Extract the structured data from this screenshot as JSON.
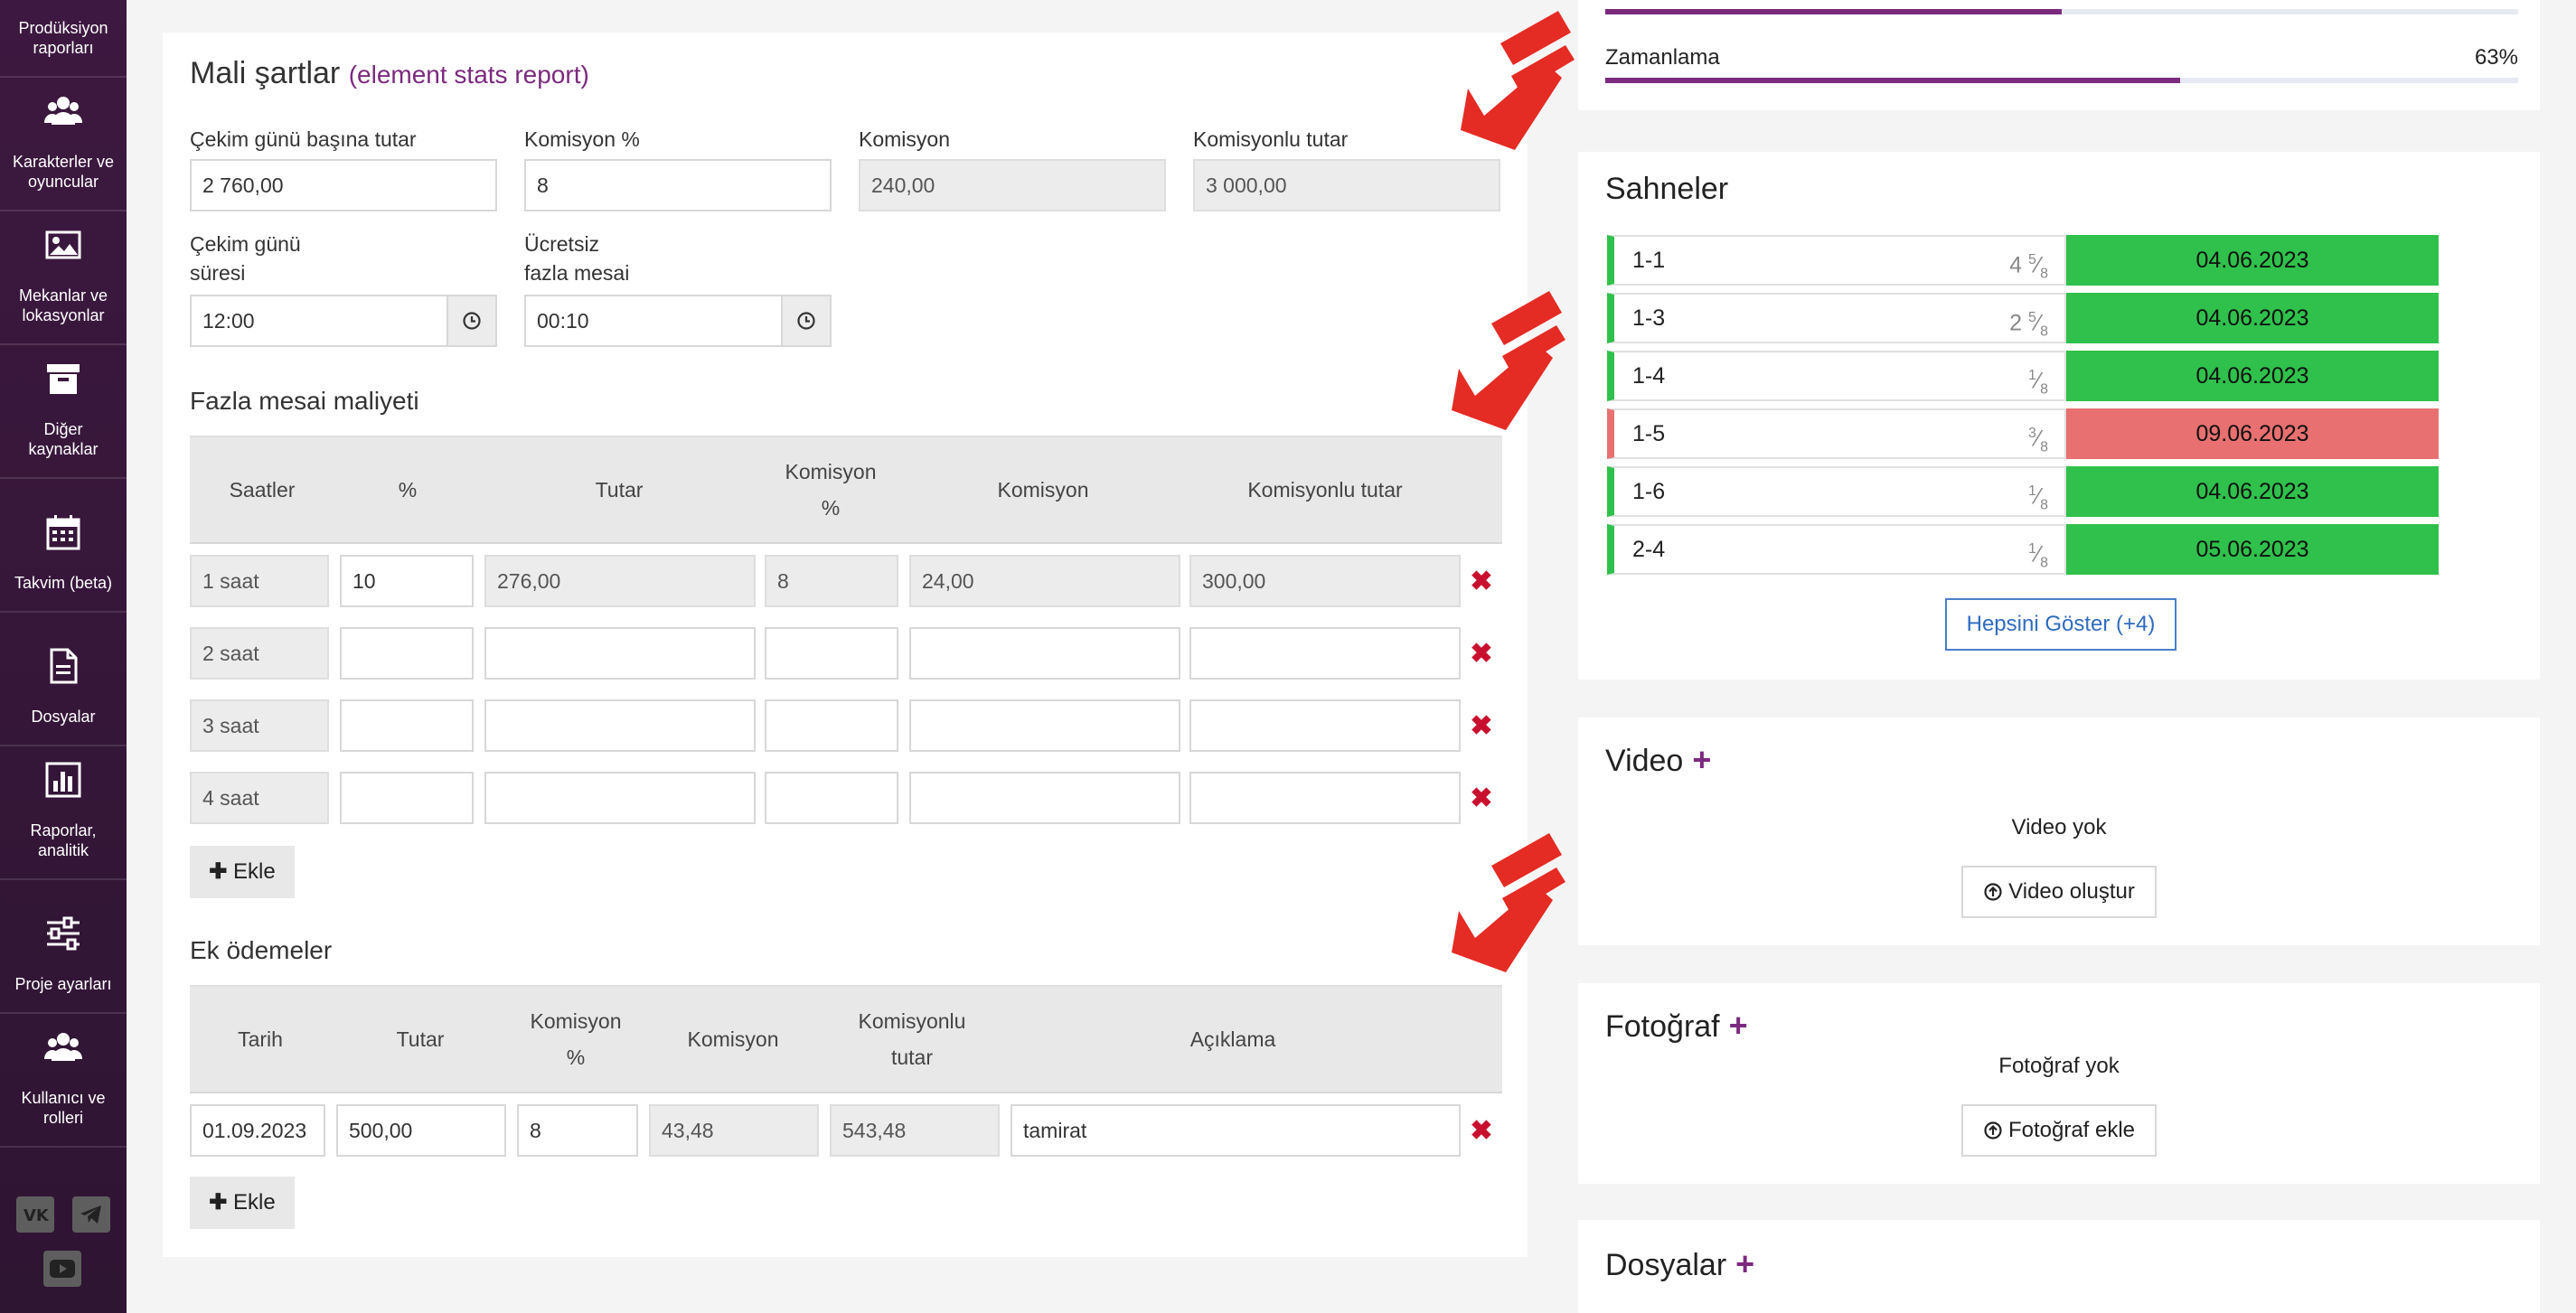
{
  "sidebar": {
    "items": [
      {
        "label": "Prodüksiyon raporları",
        "icon": "report-icon"
      },
      {
        "label": "Karakterler ve oyuncular",
        "icon": "users-icon"
      },
      {
        "label": "Mekanlar ve lokasyonlar",
        "icon": "image-icon"
      },
      {
        "label": "Diğer kaynaklar",
        "icon": "archive-icon"
      },
      {
        "label": "Takvim (beta)",
        "icon": "calendar-icon"
      },
      {
        "label": "Dosyalar",
        "icon": "document-icon"
      },
      {
        "label": "Raporlar, analitik",
        "icon": "chart-icon"
      },
      {
        "label": "Proje ayarları",
        "icon": "sliders-icon"
      },
      {
        "label": "Kullanıcı ve rolleri",
        "icon": "users-icon"
      }
    ],
    "social": [
      "vk-icon",
      "telegram-icon",
      "youtube-icon"
    ]
  },
  "mali": {
    "title": "Mali şartlar",
    "subtitle": "(element stats report)",
    "fields": {
      "daily_amount_label": "Çekim günü başına tutar",
      "daily_amount_value": "2 760,00",
      "commission_pct_label": "Komisyon %",
      "commission_pct_value": "8",
      "commission_label": "Komisyon",
      "commission_value": "240,00",
      "total_label": "Komisyonlu tutar",
      "total_value": "3 000,00",
      "duration_label_1": "Çekim günü",
      "duration_label_2": "süresi",
      "duration_value": "12:00",
      "free_overtime_label_1": "Ücretsiz",
      "free_overtime_label_2": "fazla mesai",
      "free_overtime_value": "00:10"
    },
    "overtime": {
      "title": "Fazla mesai maliyeti",
      "headers": {
        "hours": "Saatler",
        "pct": "%",
        "amount": "Tutar",
        "comm_pct_1": "Komisyon",
        "comm_pct_2": "%",
        "comm": "Komisyon",
        "total": "Komisyonlu tutar"
      },
      "rows": [
        {
          "hours": "1 saat",
          "pct": "10",
          "amount": "276,00",
          "comm_pct": "8",
          "comm": "24,00",
          "total": "300,00"
        },
        {
          "hours": "2 saat",
          "pct": "",
          "amount": "",
          "comm_pct": "",
          "comm": "",
          "total": ""
        },
        {
          "hours": "3 saat",
          "pct": "",
          "amount": "",
          "comm_pct": "",
          "comm": "",
          "total": ""
        },
        {
          "hours": "4 saat",
          "pct": "",
          "amount": "",
          "comm_pct": "",
          "comm": "",
          "total": ""
        }
      ],
      "add_label": "Ekle"
    },
    "extra": {
      "title": "Ek ödemeler",
      "headers": {
        "date": "Tarih",
        "amount": "Tutar",
        "comm_pct_1": "Komisyon",
        "comm_pct_2": "%",
        "comm": "Komisyon",
        "total_1": "Komisyonlu",
        "total_2": "tutar",
        "desc": "Açıklama"
      },
      "rows": [
        {
          "date": "01.09.2023",
          "amount": "500,00",
          "comm_pct": "8",
          "comm": "43,48",
          "total": "543,48",
          "desc": "tamirat"
        }
      ],
      "add_label": "Ekle"
    }
  },
  "progress": {
    "top_bar_fill": 0.5,
    "label": "Zamanlama",
    "percent_text": "63%",
    "fill": 0.63,
    "accent": "#7b2a7e"
  },
  "scenes": {
    "title": "Sahneler",
    "items": [
      {
        "name": "1-1",
        "whole": "4",
        "num": "5",
        "den": "8",
        "date": "04.06.2023",
        "status": "green"
      },
      {
        "name": "1-3",
        "whole": "2",
        "num": "5",
        "den": "8",
        "date": "04.06.2023",
        "status": "green"
      },
      {
        "name": "1-4",
        "whole": "",
        "num": "1",
        "den": "8",
        "date": "04.06.2023",
        "status": "green"
      },
      {
        "name": "1-5",
        "whole": "",
        "num": "3",
        "den": "8",
        "date": "09.06.2023",
        "status": "red"
      },
      {
        "name": "1-6",
        "whole": "",
        "num": "1",
        "den": "8",
        "date": "04.06.2023",
        "status": "green"
      },
      {
        "name": "2-4",
        "whole": "",
        "num": "1",
        "den": "8",
        "date": "05.06.2023",
        "status": "green"
      }
    ],
    "show_all": "Hepsini Göster (+4)",
    "colors": {
      "green": "#2fc14b",
      "red": "#e87070"
    }
  },
  "video": {
    "title": "Video",
    "empty": "Video yok",
    "button": "Video oluştur"
  },
  "photo": {
    "title": "Fotoğraf",
    "empty": "Fotoğraf yok",
    "button": "Fotoğraf ekle"
  },
  "files": {
    "title": "Dosyalar"
  }
}
